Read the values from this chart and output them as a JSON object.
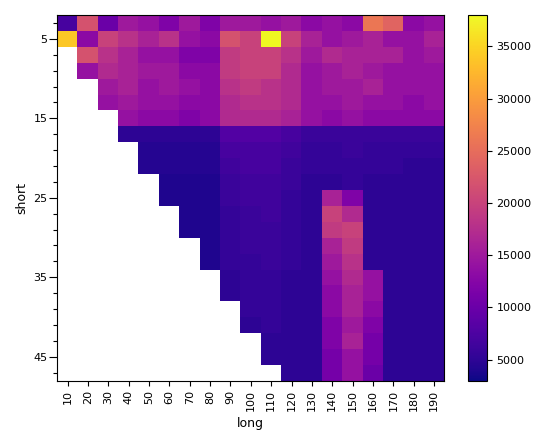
{
  "short_values": [
    3,
    5,
    7,
    9,
    11,
    13,
    15,
    17,
    19,
    21,
    23,
    25,
    27,
    29,
    31,
    33,
    35,
    37,
    39,
    41,
    43,
    45,
    47
  ],
  "long_values": [
    10,
    20,
    30,
    40,
    50,
    60,
    70,
    80,
    90,
    100,
    110,
    120,
    130,
    140,
    150,
    160,
    170,
    180,
    190
  ],
  "xlabel": "long",
  "ylabel": "short",
  "cmap": "plasma",
  "vmin": 3000,
  "vmax": 38000,
  "colorbar_ticks": [
    5000,
    10000,
    15000,
    20000,
    25000,
    30000,
    35000
  ],
  "ytick_labels_show": [
    5,
    10,
    15,
    20,
    25,
    30,
    35,
    40,
    45
  ],
  "heatmap_data": [
    [
      7000,
      22000,
      10000,
      15000,
      14000,
      12000,
      15000,
      12000,
      15000,
      15000,
      14000,
      15000,
      13000,
      14000,
      13000,
      26000,
      24000,
      13000,
      14000
    ],
    [
      34000,
      13000,
      20000,
      18000,
      16000,
      18000,
      14000,
      13000,
      22000,
      20000,
      38000,
      20000,
      16000,
      14000,
      15000,
      16000,
      14000,
      14000,
      16000
    ],
    [
      null,
      22000,
      18000,
      16000,
      14000,
      14000,
      12000,
      12000,
      19000,
      20000,
      20000,
      18000,
      15000,
      17000,
      16000,
      16000,
      16000,
      14000,
      15000
    ],
    [
      null,
      14000,
      17000,
      16000,
      15000,
      15000,
      13000,
      13000,
      19000,
      20000,
      20000,
      17000,
      14000,
      15000,
      16000,
      15000,
      14000,
      14000,
      14000
    ],
    [
      null,
      null,
      15000,
      16000,
      14000,
      15000,
      14000,
      13000,
      18000,
      19000,
      18000,
      17000,
      14000,
      15000,
      15000,
      16000,
      14000,
      14000,
      14000
    ],
    [
      null,
      null,
      14000,
      15000,
      14000,
      14000,
      13000,
      13000,
      17000,
      18000,
      18000,
      17000,
      14000,
      14000,
      15000,
      14000,
      14000,
      13000,
      14000
    ],
    [
      null,
      null,
      null,
      14000,
      13000,
      13000,
      12000,
      13000,
      17000,
      17000,
      17000,
      16000,
      14000,
      13000,
      14000,
      13000,
      13000,
      13000,
      13000
    ],
    [
      null,
      null,
      null,
      5000,
      5000,
      5000,
      5000,
      5000,
      8000,
      8000,
      8000,
      7000,
      6000,
      6000,
      6000,
      6000,
      6000,
      6000,
      6000
    ],
    [
      null,
      null,
      null,
      null,
      4500,
      4500,
      4500,
      4500,
      7000,
      7000,
      7000,
      6500,
      5500,
      5500,
      6000,
      5500,
      5500,
      5500,
      5500
    ],
    [
      null,
      null,
      null,
      null,
      4500,
      4500,
      4500,
      4500,
      6500,
      7000,
      7000,
      6000,
      5500,
      5500,
      5500,
      5500,
      5500,
      5000,
      5000
    ],
    [
      null,
      null,
      null,
      null,
      null,
      4000,
      4000,
      4000,
      6000,
      6500,
      6500,
      6000,
      5000,
      5000,
      5500,
      5000,
      5000,
      5000,
      5000
    ],
    [
      null,
      null,
      null,
      null,
      null,
      4000,
      4000,
      4000,
      6000,
      6500,
      6500,
      5500,
      5000,
      16000,
      12000,
      5000,
      5000,
      5000,
      5000
    ],
    [
      null,
      null,
      null,
      null,
      null,
      null,
      4000,
      4000,
      5500,
      6000,
      6500,
      5500,
      5000,
      20000,
      17000,
      5000,
      5000,
      5000,
      5000
    ],
    [
      null,
      null,
      null,
      null,
      null,
      null,
      4000,
      4000,
      5500,
      6000,
      6000,
      5500,
      5000,
      19000,
      20000,
      5000,
      5000,
      5000,
      5000
    ],
    [
      null,
      null,
      null,
      null,
      null,
      null,
      null,
      4000,
      5500,
      6000,
      6000,
      5500,
      5000,
      16000,
      19000,
      5000,
      5000,
      5000,
      5000
    ],
    [
      null,
      null,
      null,
      null,
      null,
      null,
      null,
      4000,
      5500,
      5500,
      6000,
      5500,
      5000,
      15000,
      18000,
      5000,
      5000,
      5000,
      5000
    ],
    [
      null,
      null,
      null,
      null,
      null,
      null,
      null,
      null,
      5000,
      5500,
      5500,
      5000,
      5000,
      14000,
      17000,
      14000,
      5000,
      5000,
      5000
    ],
    [
      null,
      null,
      null,
      null,
      null,
      null,
      null,
      null,
      5000,
      5500,
      5500,
      5000,
      5000,
      13000,
      16000,
      14000,
      5000,
      5000,
      5000
    ],
    [
      null,
      null,
      null,
      null,
      null,
      null,
      null,
      null,
      null,
      5500,
      5500,
      5000,
      5000,
      13000,
      16000,
      13000,
      5000,
      5000,
      5000
    ],
    [
      null,
      null,
      null,
      null,
      null,
      null,
      null,
      null,
      null,
      5000,
      5500,
      5000,
      5000,
      12000,
      15000,
      12000,
      5000,
      5000,
      5000
    ],
    [
      null,
      null,
      null,
      null,
      null,
      null,
      null,
      null,
      null,
      null,
      5000,
      5000,
      5000,
      12000,
      16000,
      11000,
      5000,
      5000,
      5000
    ],
    [
      null,
      null,
      null,
      null,
      null,
      null,
      null,
      null,
      null,
      null,
      5000,
      5000,
      5000,
      11000,
      14000,
      11000,
      5000,
      5000,
      5000
    ],
    [
      null,
      null,
      null,
      null,
      null,
      null,
      null,
      null,
      null,
      null,
      null,
      5000,
      5000,
      11000,
      14000,
      10000,
      5000,
      5000,
      5000
    ]
  ]
}
